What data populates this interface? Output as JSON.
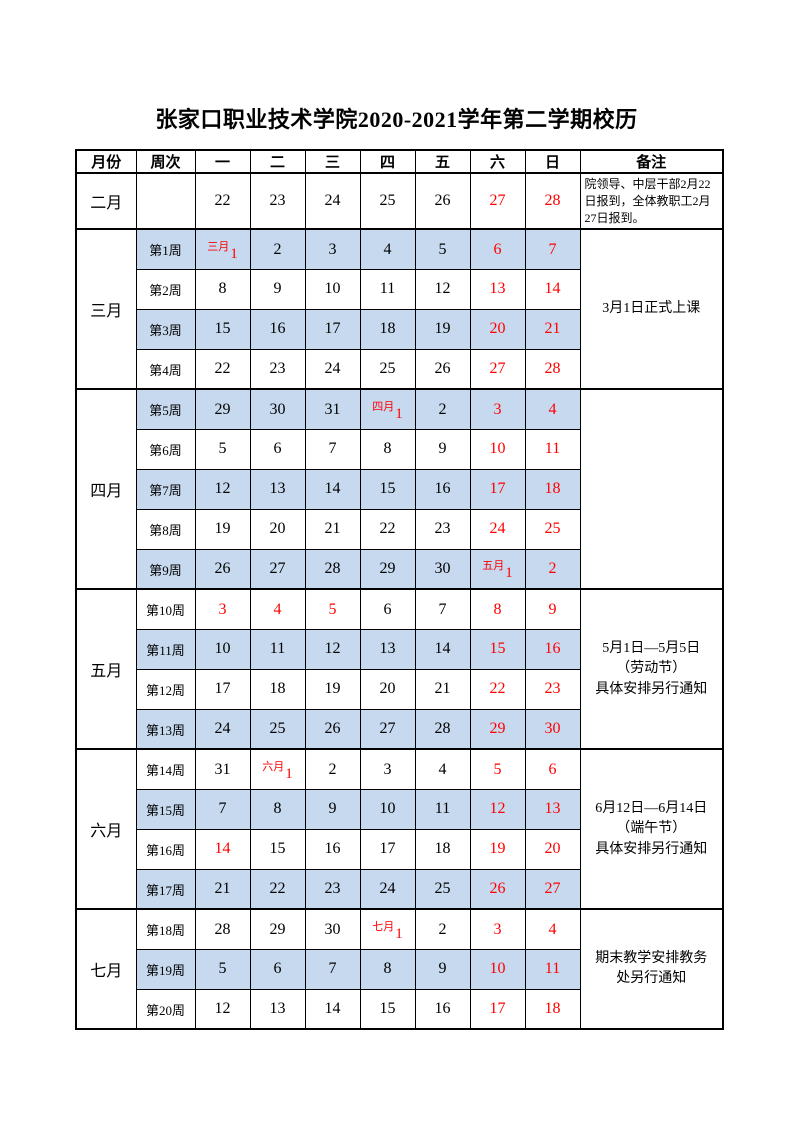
{
  "title": "张家口职业技术学院2020-2021学年第二学期校历",
  "colors": {
    "highlight_blue": "#c7d9ef",
    "holiday_red": "#ff0000"
  },
  "table": {
    "headers": [
      "月份",
      "周次",
      "一",
      "二",
      "三",
      "四",
      "五",
      "六",
      "日",
      "备注"
    ],
    "month_groups": [
      {
        "month": "二月",
        "remark_align": "left",
        "remark_lines": [
          "院领导、中层干部2月22",
          "日报到，全体教职工2月",
          "27日报到。"
        ],
        "rows": [
          {
            "week": "",
            "highlight": false,
            "cells": [
              {
                "t": "22"
              },
              {
                "t": "23"
              },
              {
                "t": "24"
              },
              {
                "t": "25"
              },
              {
                "t": "26"
              },
              {
                "t": "27",
                "red": true
              },
              {
                "t": "28",
                "red": true
              }
            ]
          }
        ]
      },
      {
        "month": "三月",
        "remark_align": "center",
        "remark_lines": [
          "3月1日正式上课"
        ],
        "rows": [
          {
            "week": "第1周",
            "highlight": true,
            "cells": [
              {
                "label": "三月",
                "t": "1",
                "red": true
              },
              {
                "t": "2"
              },
              {
                "t": "3"
              },
              {
                "t": "4"
              },
              {
                "t": "5"
              },
              {
                "t": "6",
                "red": true
              },
              {
                "t": "7",
                "red": true
              }
            ]
          },
          {
            "week": "第2周",
            "highlight": false,
            "cells": [
              {
                "t": "8"
              },
              {
                "t": "9"
              },
              {
                "t": "10"
              },
              {
                "t": "11"
              },
              {
                "t": "12"
              },
              {
                "t": "13",
                "red": true
              },
              {
                "t": "14",
                "red": true
              }
            ]
          },
          {
            "week": "第3周",
            "highlight": true,
            "cells": [
              {
                "t": "15"
              },
              {
                "t": "16"
              },
              {
                "t": "17"
              },
              {
                "t": "18"
              },
              {
                "t": "19"
              },
              {
                "t": "20",
                "red": true
              },
              {
                "t": "21",
                "red": true
              }
            ]
          },
          {
            "week": "第4周",
            "highlight": false,
            "cells": [
              {
                "t": "22"
              },
              {
                "t": "23"
              },
              {
                "t": "24"
              },
              {
                "t": "25"
              },
              {
                "t": "26"
              },
              {
                "t": "27",
                "red": true
              },
              {
                "t": "28",
                "red": true
              }
            ]
          }
        ]
      },
      {
        "month": "四月",
        "remark_align": "center",
        "remark_lines": [],
        "rows": [
          {
            "week": "第5周",
            "highlight": true,
            "cells": [
              {
                "t": "29"
              },
              {
                "t": "30"
              },
              {
                "t": "31"
              },
              {
                "label": "四月",
                "t": "1",
                "red": true
              },
              {
                "t": "2"
              },
              {
                "t": "3",
                "red": true
              },
              {
                "t": "4",
                "red": true
              }
            ]
          },
          {
            "week": "第6周",
            "highlight": false,
            "cells": [
              {
                "t": "5"
              },
              {
                "t": "6"
              },
              {
                "t": "7"
              },
              {
                "t": "8"
              },
              {
                "t": "9"
              },
              {
                "t": "10",
                "red": true
              },
              {
                "t": "11",
                "red": true
              }
            ]
          },
          {
            "week": "第7周",
            "highlight": true,
            "cells": [
              {
                "t": "12"
              },
              {
                "t": "13"
              },
              {
                "t": "14"
              },
              {
                "t": "15"
              },
              {
                "t": "16"
              },
              {
                "t": "17",
                "red": true
              },
              {
                "t": "18",
                "red": true
              }
            ]
          },
          {
            "week": "第8周",
            "highlight": false,
            "cells": [
              {
                "t": "19"
              },
              {
                "t": "20"
              },
              {
                "t": "21"
              },
              {
                "t": "22"
              },
              {
                "t": "23"
              },
              {
                "t": "24",
                "red": true
              },
              {
                "t": "25",
                "red": true
              }
            ]
          },
          {
            "week": "第9周",
            "highlight": true,
            "cells": [
              {
                "t": "26"
              },
              {
                "t": "27"
              },
              {
                "t": "28"
              },
              {
                "t": "29"
              },
              {
                "t": "30"
              },
              {
                "label": "五月",
                "t": "1",
                "red": true
              },
              {
                "t": "2",
                "red": true
              }
            ]
          }
        ]
      },
      {
        "month": "五月",
        "remark_align": "center",
        "remark_lines": [
          "5月1日—5月5日",
          "（劳动节）",
          "具体安排另行通知"
        ],
        "rows": [
          {
            "week": "第10周",
            "highlight": false,
            "cells": [
              {
                "t": "3",
                "red": true
              },
              {
                "t": "4",
                "red": true
              },
              {
                "t": "5",
                "red": true
              },
              {
                "t": "6"
              },
              {
                "t": "7"
              },
              {
                "t": "8",
                "red": true
              },
              {
                "t": "9",
                "red": true
              }
            ]
          },
          {
            "week": "第11周",
            "highlight": true,
            "cells": [
              {
                "t": "10"
              },
              {
                "t": "11"
              },
              {
                "t": "12"
              },
              {
                "t": "13"
              },
              {
                "t": "14"
              },
              {
                "t": "15",
                "red": true
              },
              {
                "t": "16",
                "red": true
              }
            ]
          },
          {
            "week": "第12周",
            "highlight": false,
            "cells": [
              {
                "t": "17"
              },
              {
                "t": "18"
              },
              {
                "t": "19"
              },
              {
                "t": "20"
              },
              {
                "t": "21"
              },
              {
                "t": "22",
                "red": true
              },
              {
                "t": "23",
                "red": true
              }
            ]
          },
          {
            "week": "第13周",
            "highlight": true,
            "cells": [
              {
                "t": "24"
              },
              {
                "t": "25"
              },
              {
                "t": "26"
              },
              {
                "t": "27"
              },
              {
                "t": "28"
              },
              {
                "t": "29",
                "red": true
              },
              {
                "t": "30",
                "red": true
              }
            ]
          }
        ]
      },
      {
        "month": "六月",
        "remark_align": "center",
        "remark_lines": [
          "6月12日—6月14日",
          "（端午节）",
          "具体安排另行通知"
        ],
        "rows": [
          {
            "week": "第14周",
            "highlight": false,
            "cells": [
              {
                "t": "31"
              },
              {
                "label": "六月",
                "t": "1",
                "red": true
              },
              {
                "t": "2"
              },
              {
                "t": "3"
              },
              {
                "t": "4"
              },
              {
                "t": "5",
                "red": true
              },
              {
                "t": "6",
                "red": true
              }
            ]
          },
          {
            "week": "第15周",
            "highlight": true,
            "cells": [
              {
                "t": "7"
              },
              {
                "t": "8"
              },
              {
                "t": "9"
              },
              {
                "t": "10"
              },
              {
                "t": "11"
              },
              {
                "t": "12",
                "red": true
              },
              {
                "t": "13",
                "red": true
              }
            ]
          },
          {
            "week": "第16周",
            "highlight": false,
            "cells": [
              {
                "t": "14",
                "red": true
              },
              {
                "t": "15"
              },
              {
                "t": "16"
              },
              {
                "t": "17"
              },
              {
                "t": "18"
              },
              {
                "t": "19",
                "red": true
              },
              {
                "t": "20",
                "red": true
              }
            ]
          },
          {
            "week": "第17周",
            "highlight": true,
            "cells": [
              {
                "t": "21"
              },
              {
                "t": "22"
              },
              {
                "t": "23"
              },
              {
                "t": "24"
              },
              {
                "t": "25"
              },
              {
                "t": "26",
                "red": true
              },
              {
                "t": "27",
                "red": true
              }
            ]
          }
        ]
      },
      {
        "month": "七月",
        "remark_align": "center",
        "remark_lines": [
          "期末教学安排教务",
          "处另行通知"
        ],
        "rows": [
          {
            "week": "第18周",
            "highlight": false,
            "cells": [
              {
                "t": "28"
              },
              {
                "t": "29"
              },
              {
                "t": "30"
              },
              {
                "label": "七月",
                "t": "1",
                "red": true
              },
              {
                "t": "2"
              },
              {
                "t": "3",
                "red": true
              },
              {
                "t": "4",
                "red": true
              }
            ]
          },
          {
            "week": "第19周",
            "highlight": true,
            "cells": [
              {
                "t": "5"
              },
              {
                "t": "6"
              },
              {
                "t": "7"
              },
              {
                "t": "8"
              },
              {
                "t": "9"
              },
              {
                "t": "10",
                "red": true
              },
              {
                "t": "11",
                "red": true
              }
            ]
          },
          {
            "week": "第20周",
            "highlight": false,
            "cells": [
              {
                "t": "12"
              },
              {
                "t": "13"
              },
              {
                "t": "14"
              },
              {
                "t": "15"
              },
              {
                "t": "16"
              },
              {
                "t": "17",
                "red": true
              },
              {
                "t": "18",
                "red": true
              }
            ]
          }
        ]
      }
    ]
  }
}
